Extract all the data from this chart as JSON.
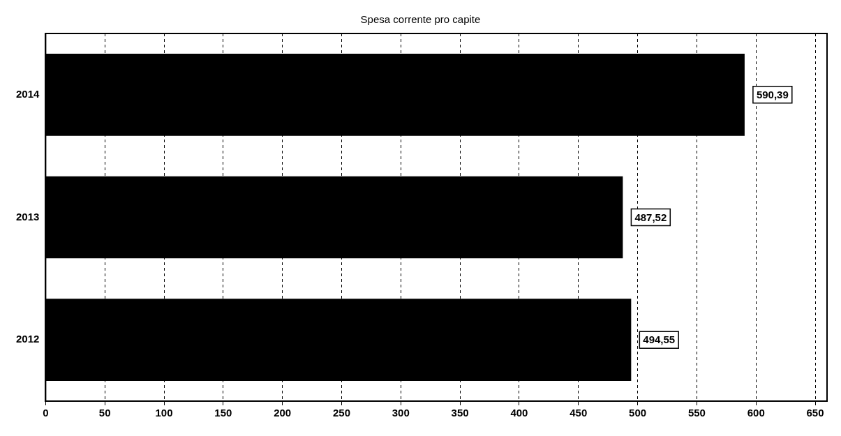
{
  "chart_data": {
    "type": "bar",
    "orientation": "horizontal",
    "title": "Spesa corrente pro capite",
    "categories": [
      "2014",
      "2013",
      "2012"
    ],
    "values": [
      590.39,
      487.52,
      494.55
    ],
    "value_labels": [
      "590,39",
      "487,52",
      "494,55"
    ],
    "color": "#000000",
    "xlim": [
      0,
      660
    ],
    "xticks": [
      0,
      50,
      100,
      150,
      200,
      250,
      300,
      350,
      400,
      450,
      500,
      550,
      600,
      650
    ],
    "grid": "x",
    "line_style": "dashed"
  }
}
